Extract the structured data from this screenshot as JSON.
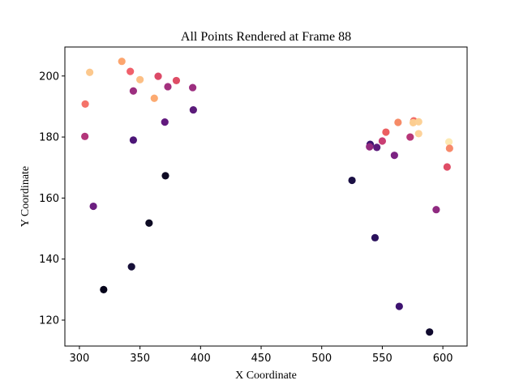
{
  "chart_data": {
    "type": "scatter",
    "title": "All Points Rendered at Frame 88",
    "xlabel": "X Coordinate",
    "ylabel": "Y Coordinate",
    "xlim": [
      288,
      620
    ],
    "ylim": [
      111.5,
      209.5
    ],
    "xticks": [
      300,
      350,
      400,
      450,
      500,
      550,
      600
    ],
    "yticks": [
      120,
      140,
      160,
      180,
      200
    ],
    "grid": false,
    "colormap": "magma",
    "points": [
      {
        "x": 308.5,
        "y": 201.2,
        "color": "#fcc88d"
      },
      {
        "x": 335,
        "y": 204.8,
        "color": "#fca56e"
      },
      {
        "x": 342,
        "y": 201.5,
        "color": "#f0606b"
      },
      {
        "x": 350,
        "y": 198.8,
        "color": "#fcbf85"
      },
      {
        "x": 304.8,
        "y": 190.8,
        "color": "#f4736a"
      },
      {
        "x": 304.5,
        "y": 180.2,
        "color": "#b3367a"
      },
      {
        "x": 344.5,
        "y": 195.1,
        "color": "#9c2e7f"
      },
      {
        "x": 361.8,
        "y": 192.7,
        "color": "#fcaa71"
      },
      {
        "x": 365,
        "y": 199.9,
        "color": "#dc4a67"
      },
      {
        "x": 373,
        "y": 196.5,
        "color": "#a3307e"
      },
      {
        "x": 380,
        "y": 198.5,
        "color": "#de4d66"
      },
      {
        "x": 393.5,
        "y": 196.2,
        "color": "#9c2e7f"
      },
      {
        "x": 394,
        "y": 188.9,
        "color": "#5b1b7a"
      },
      {
        "x": 370.5,
        "y": 184.9,
        "color": "#62197e"
      },
      {
        "x": 344.5,
        "y": 179,
        "color": "#4c1577"
      },
      {
        "x": 371,
        "y": 167.3,
        "color": "#0e0a24"
      },
      {
        "x": 311.5,
        "y": 157.3,
        "color": "#6c1f80"
      },
      {
        "x": 357.5,
        "y": 151.8,
        "color": "#0d0a23"
      },
      {
        "x": 343,
        "y": 137.5,
        "color": "#160f38"
      },
      {
        "x": 320,
        "y": 130,
        "color": "#05031a"
      },
      {
        "x": 525,
        "y": 165.8,
        "color": "#1b1044"
      },
      {
        "x": 544,
        "y": 147,
        "color": "#2a115c"
      },
      {
        "x": 540,
        "y": 177.6,
        "color": "#3b1370"
      },
      {
        "x": 539.5,
        "y": 176.8,
        "color": "#932a7f"
      },
      {
        "x": 545.5,
        "y": 176.6,
        "color": "#5c1b7c"
      },
      {
        "x": 550,
        "y": 178.7,
        "color": "#c93e73"
      },
      {
        "x": 553,
        "y": 181.6,
        "color": "#ec5e60"
      },
      {
        "x": 560,
        "y": 174,
        "color": "#7c2382"
      },
      {
        "x": 563,
        "y": 184.8,
        "color": "#f68b67"
      },
      {
        "x": 573,
        "y": 180,
        "color": "#b73678"
      },
      {
        "x": 576,
        "y": 185.3,
        "color": "#f36a66"
      },
      {
        "x": 575.5,
        "y": 184.7,
        "color": "#fccd91"
      },
      {
        "x": 580,
        "y": 185,
        "color": "#fcd196"
      },
      {
        "x": 580,
        "y": 181.1,
        "color": "#fdd29a"
      },
      {
        "x": 564,
        "y": 124.5,
        "color": "#3d1270"
      },
      {
        "x": 589,
        "y": 116.1,
        "color": "#100a2e"
      },
      {
        "x": 594.5,
        "y": 156.2,
        "color": "#8f2a80"
      },
      {
        "x": 603.5,
        "y": 170.2,
        "color": "#df4d66"
      },
      {
        "x": 605,
        "y": 178.4,
        "color": "#fde9b3"
      },
      {
        "x": 605.5,
        "y": 176.3,
        "color": "#f7896a"
      }
    ]
  }
}
